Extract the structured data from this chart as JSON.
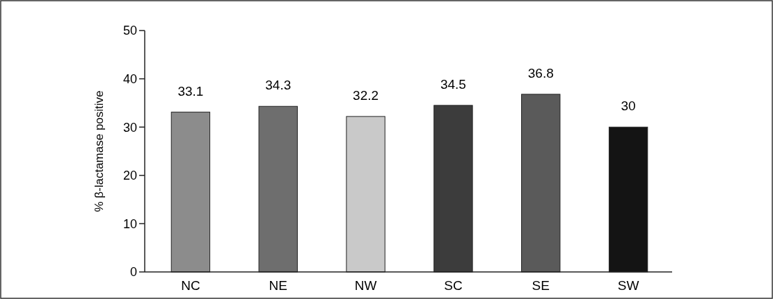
{
  "chart_data": {
    "type": "bar",
    "ylabel": "% β-lactamase positive",
    "categories": [
      "NC",
      "NE",
      "NW",
      "SC",
      "SE",
      "SW"
    ],
    "values": [
      33.1,
      34.3,
      32.2,
      34.5,
      36.8,
      30
    ],
    "colors": [
      "#8c8c8c",
      "#6e6e6e",
      "#c9c9c9",
      "#3c3c3c",
      "#5a5a5a",
      "#141414"
    ],
    "ylim": [
      0,
      50
    ],
    "yticks": [
      0,
      10,
      20,
      30,
      40,
      50
    ],
    "data_labels": true,
    "grid": false
  }
}
